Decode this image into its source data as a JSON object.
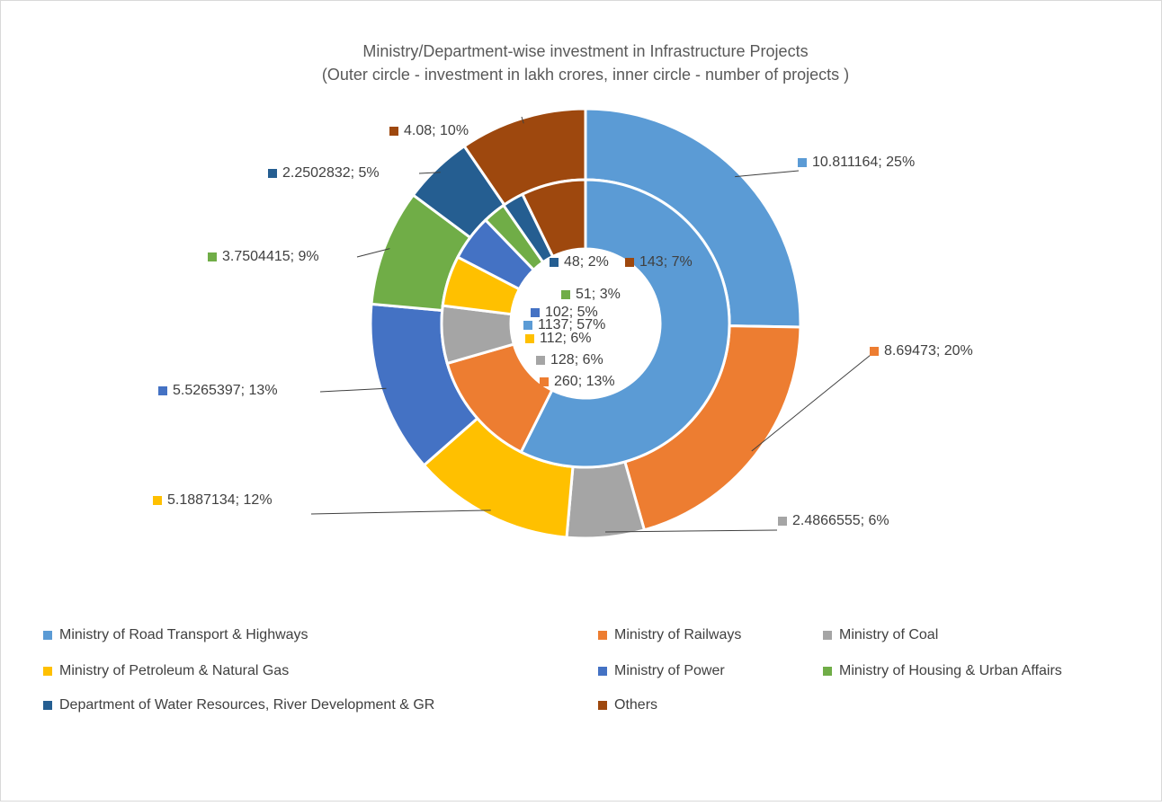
{
  "chart_data": {
    "type": "doughnut",
    "title": "Ministry/Department-wise investment in Infrastructure Projects",
    "subtitle": "(Outer circle - investment in lakh crores, inner circle - number of projects )",
    "categories": [
      "Ministry of Road Transport & Highways",
      "Ministry of Railways",
      "Ministry of Coal",
      "Ministry of Petroleum & Natural Gas",
      "Ministry of Power",
      "Ministry of Housing & Urban Affairs",
      "Department of Water Resources, River Development & GR",
      "Others"
    ],
    "colors": [
      "#5b9bd5",
      "#ed7d31",
      "#a5a5a5",
      "#ffc000",
      "#4472c4",
      "#70ad47",
      "#255e91",
      "#9e480e"
    ],
    "series": [
      {
        "values": [
          10.811164,
          8.69473,
          2.4866555,
          5.1887134,
          5.5265397,
          3.7504415,
          2.2502832,
          4.08
        ],
        "value_labels": [
          "10.811164; 25%",
          "8.69473; 20%",
          "2.4866555; 6%",
          "5.1887134; 12%",
          "5.5265397; 13%",
          "3.7504415; 9%",
          "2.2502832; 5%",
          "4.08; 10%"
        ]
      },
      {
        "values": [
          1137,
          260,
          128,
          112,
          102,
          51,
          48,
          143
        ],
        "value_labels": [
          "1137; 57%",
          "260; 13%",
          "128; 6%",
          "112; 6%",
          "102; 5%",
          "51; 3%",
          "48; 2%",
          "143; 7%"
        ]
      }
    ],
    "legend": "bottom"
  }
}
